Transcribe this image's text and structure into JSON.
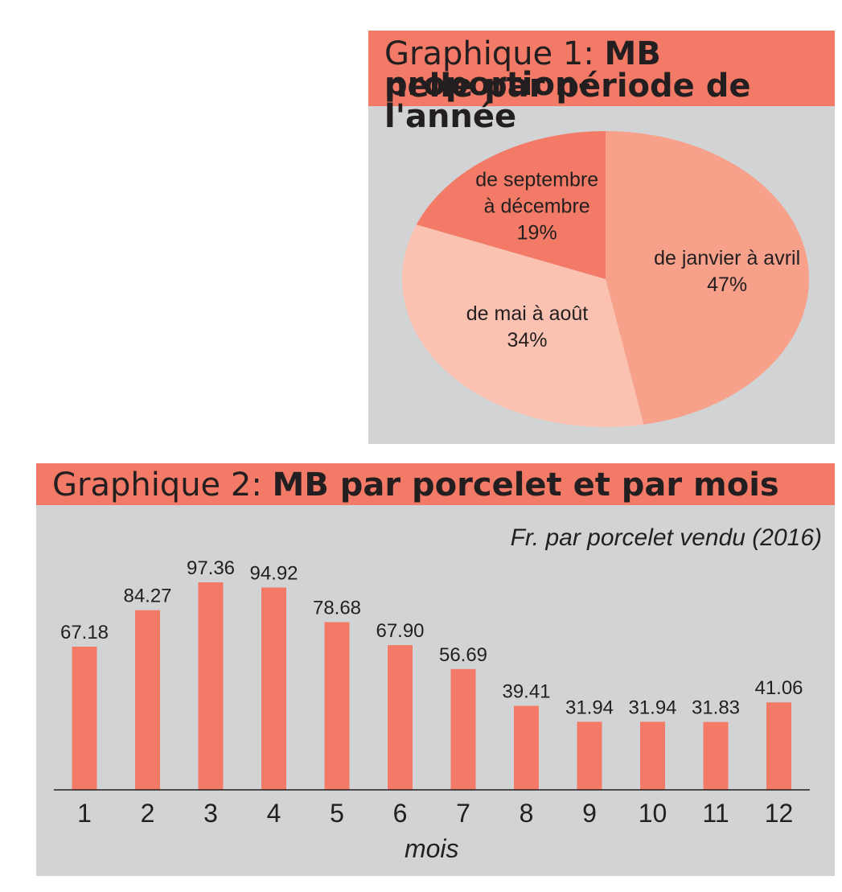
{
  "chart_data": [
    {
      "type": "pie",
      "title_prefix": "Graphique 1: ",
      "title_bold_line1": "MB proportion-",
      "title_bold_line2": "nelle par période de l'année",
      "slices": [
        {
          "label_line1": "de janvier à avril",
          "label_line2": "",
          "value": 47,
          "value_label": "47%",
          "color": "#f7a08a"
        },
        {
          "label_line1": "de mai à août",
          "label_line2": "",
          "value": 34,
          "value_label": "34%",
          "color": "#fbc2b1"
        },
        {
          "label_line1": "de septembre",
          "label_line2": "à décembre",
          "value": 19,
          "value_label": "19%",
          "color": "#f37a66"
        }
      ]
    },
    {
      "type": "bar",
      "title_prefix": "Graphique 2: ",
      "title_bold": "MB par porcelet et par mois",
      "unit_label": "Fr. par porcelet vendu (2016)",
      "xlabel": "mois",
      "categories": [
        "1",
        "2",
        "3",
        "4",
        "5",
        "6",
        "7",
        "8",
        "9",
        "10",
        "11",
        "12"
      ],
      "values": [
        67.18,
        84.27,
        97.36,
        94.92,
        78.68,
        67.9,
        56.69,
        39.41,
        31.94,
        31.94,
        31.83,
        41.06
      ],
      "value_labels": [
        "67.18",
        "84.27",
        "97.36",
        "94.92",
        "78.68",
        "67.90",
        "56.69",
        "39.41",
        "31.94",
        "31.94",
        "31.83",
        "41.06"
      ],
      "ylim": [
        0,
        100
      ],
      "bar_color": "#f37a66"
    }
  ]
}
